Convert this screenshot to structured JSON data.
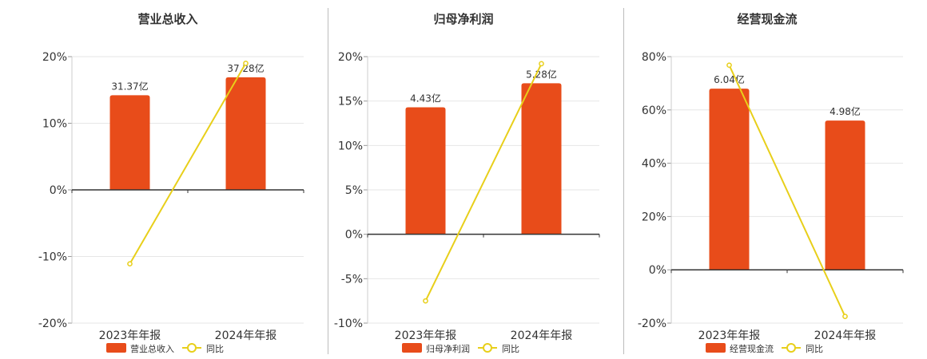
{
  "colors": {
    "bar": "#e84c1a",
    "line": "#e8cf1a",
    "axis": "#333333",
    "grid": "#e6e6e6",
    "text": "#333333"
  },
  "chart_data": [
    {
      "type": "bar",
      "title": "营业总收入",
      "categories": [
        "2023年年报",
        "2024年年报"
      ],
      "series": [
        {
          "name": "营业总收入",
          "type": "bar",
          "labels": [
            "31.37亿",
            "37.28亿"
          ]
        },
        {
          "name": "同比",
          "type": "line",
          "values": [
            -11.1,
            19.0
          ]
        }
      ],
      "ylim": [
        -20,
        20
      ],
      "yticks": [
        20,
        10,
        0,
        -10,
        -20
      ],
      "ytick_labels": [
        "20%",
        "10%",
        "0%",
        "-10%",
        "-20%"
      ],
      "bar_percent": [
        14.2,
        16.9
      ],
      "grid": true,
      "legend": "bottom"
    },
    {
      "type": "bar",
      "title": "归母净利润",
      "categories": [
        "2023年年报",
        "2024年年报"
      ],
      "series": [
        {
          "name": "归母净利润",
          "type": "bar",
          "labels": [
            "4.43亿",
            "5.28亿"
          ]
        },
        {
          "name": "同比",
          "type": "line",
          "values": [
            -7.5,
            19.2
          ]
        }
      ],
      "ylim": [
        -10,
        20
      ],
      "yticks": [
        20,
        15,
        10,
        5,
        0,
        -5,
        -10
      ],
      "ytick_labels": [
        "20%",
        "15%",
        "10%",
        "5%",
        "0%",
        "-5%",
        "-10%"
      ],
      "bar_percent": [
        14.3,
        17.0
      ],
      "grid": true,
      "legend": "bottom"
    },
    {
      "type": "bar",
      "title": "经营现金流",
      "categories": [
        "2023年年报",
        "2024年年报"
      ],
      "series": [
        {
          "name": "经营现金流",
          "type": "bar",
          "labels": [
            "6.04亿",
            "4.98亿"
          ]
        },
        {
          "name": "同比",
          "type": "line",
          "values": [
            76.8,
            -17.5
          ]
        }
      ],
      "ylim": [
        -20,
        80
      ],
      "yticks": [
        80,
        60,
        40,
        20,
        0,
        -20
      ],
      "ytick_labels": [
        "80%",
        "60%",
        "40%",
        "20%",
        "0%",
        "-20%"
      ],
      "bar_percent": [
        68.0,
        56.0
      ],
      "grid": true,
      "legend": "bottom"
    }
  ]
}
